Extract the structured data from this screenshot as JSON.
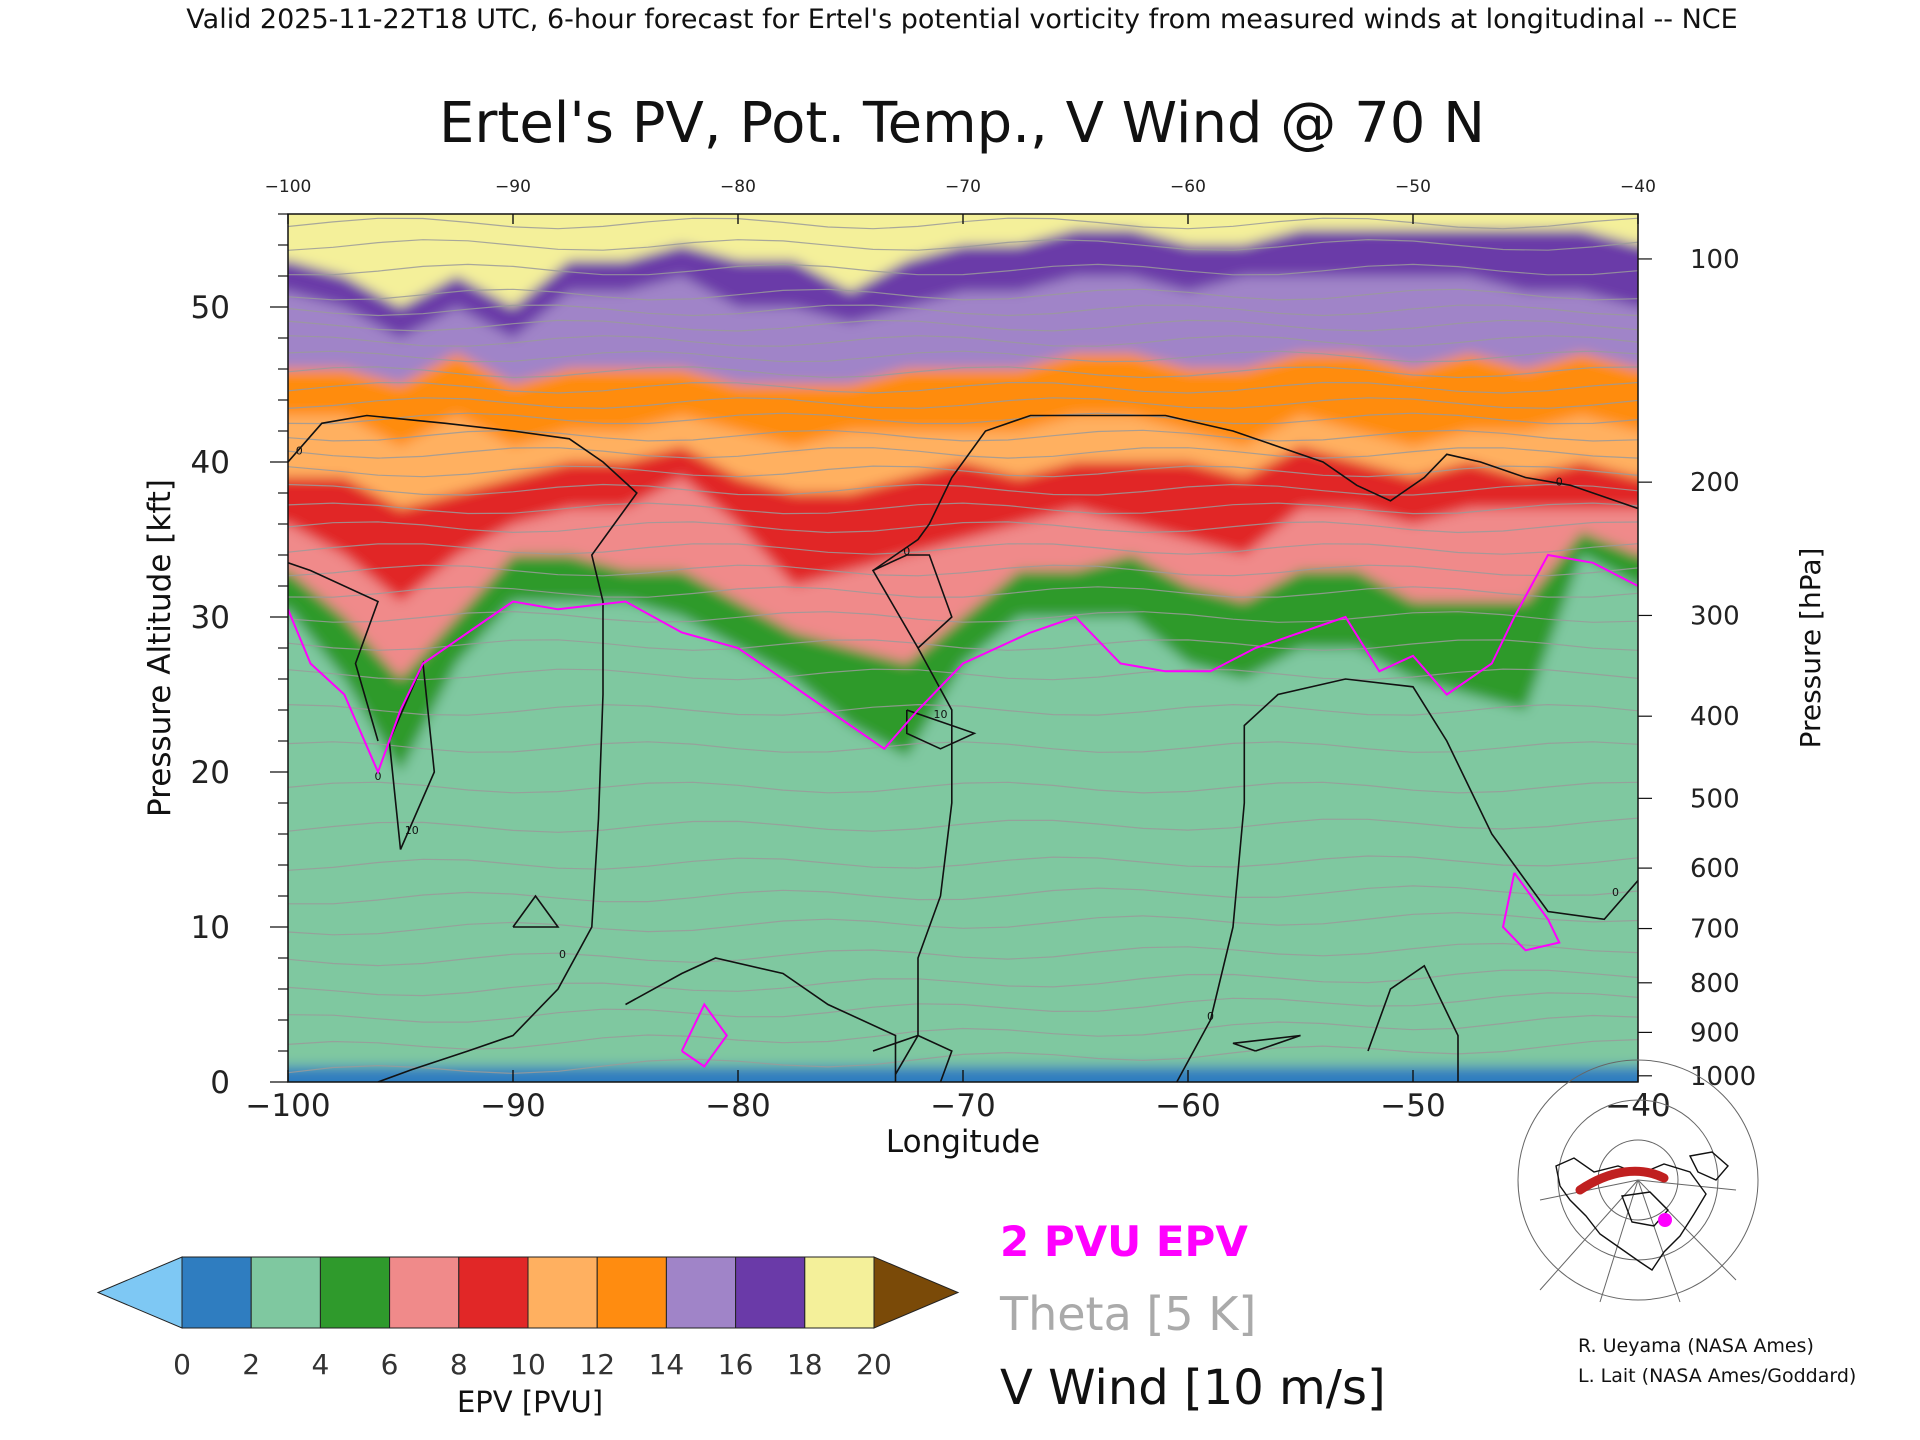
{
  "header": "Valid 2025-11-22T18 UTC, 6-hour forecast for Ertel's potential vorticity from measured winds at longitudinal -- NCE",
  "chart_data": {
    "type": "heatmap",
    "title": "Ertel's PV, Pot. Temp., V Wind @ 70 N",
    "xlabel": "Longitude",
    "ylabel": "Pressure Altitude [kft]",
    "ylabel_right": "Pressure [hPa]",
    "xlim": [
      -100,
      -40
    ],
    "ylim": [
      0,
      56
    ],
    "x_ticks": [
      -100,
      -90,
      -80,
      -70,
      -60,
      -50,
      -40
    ],
    "y_ticks": [
      0,
      10,
      20,
      30,
      40,
      50
    ],
    "pressure_ticks": [
      {
        "hPa": 100,
        "kft": 53.1
      },
      {
        "hPa": 200,
        "kft": 38.7
      },
      {
        "hPa": 300,
        "kft": 30.1
      },
      {
        "hPa": 400,
        "kft": 23.6
      },
      {
        "hPa": 500,
        "kft": 18.3
      },
      {
        "hPa": 600,
        "kft": 13.8
      },
      {
        "hPa": 700,
        "kft": 9.9
      },
      {
        "hPa": 800,
        "kft": 6.4
      },
      {
        "hPa": 900,
        "kft": 3.2
      },
      {
        "hPa": 1000,
        "kft": 0.4
      }
    ],
    "epv_layers": [
      {
        "value": 0,
        "top": [
          1,
          1,
          1,
          1,
          1,
          1,
          1,
          1,
          1,
          1,
          1,
          1,
          1,
          1,
          1,
          1,
          1,
          1,
          1,
          1,
          1,
          1,
          1,
          1,
          1
        ]
      },
      {
        "value": 2,
        "top": [
          30.5,
          26,
          20,
          27,
          31,
          31,
          31,
          30,
          28,
          26,
          23,
          21,
          27,
          30,
          30,
          30,
          27,
          26,
          28,
          28,
          26,
          25,
          24,
          34,
          32
        ]
      },
      {
        "value": 4,
        "top": [
          33,
          30,
          26,
          30,
          34,
          34,
          33,
          33,
          31,
          29,
          28,
          27,
          30,
          33,
          33,
          34,
          32,
          31,
          33,
          33,
          31,
          31,
          31,
          35.5,
          34
        ]
      },
      {
        "value": 6,
        "top": [
          36,
          34,
          31,
          34,
          36,
          37,
          37,
          39,
          36,
          32,
          33,
          34,
          35,
          36,
          37,
          36,
          35,
          34,
          37,
          37,
          36,
          37,
          37,
          37,
          37
        ]
      },
      {
        "value": 8,
        "top": [
          39,
          39,
          37,
          38,
          39,
          40,
          40,
          41,
          39,
          38,
          38,
          39,
          40,
          39,
          40,
          40,
          40,
          39,
          41,
          40,
          39,
          40,
          39,
          40,
          39
        ]
      },
      {
        "value": 10,
        "top": [
          43,
          43,
          41,
          43,
          41,
          42,
          42,
          43,
          42,
          41,
          42,
          42,
          42,
          42,
          43,
          43,
          42,
          41,
          43,
          42,
          41,
          42,
          42,
          43,
          42
        ]
      },
      {
        "value": 12,
        "top": [
          46,
          46,
          45,
          47,
          45,
          46,
          46,
          46,
          45,
          45,
          45,
          46,
          46,
          46,
          47,
          47,
          46,
          46,
          47,
          47,
          46,
          47,
          46,
          47,
          46
        ]
      },
      {
        "value": 14,
        "top": [
          51,
          50,
          48,
          50,
          48,
          51,
          51,
          52,
          50,
          50,
          49,
          50,
          51,
          51,
          52,
          52,
          51,
          52,
          52,
          52,
          52,
          52,
          51,
          51,
          50
        ]
      },
      {
        "value": 16,
        "top": [
          53,
          52,
          50,
          52,
          50,
          53,
          53,
          54,
          53,
          53,
          51,
          53,
          54,
          54,
          55,
          55,
          54,
          54,
          55,
          55,
          55,
          55,
          55,
          55,
          54
        ]
      },
      {
        "value": 18,
        "top": [
          55,
          54,
          51,
          54,
          51,
          55,
          55,
          56,
          55,
          55,
          52,
          55,
          56,
          56,
          56,
          56,
          56,
          56,
          56,
          56,
          56,
          56,
          56,
          56,
          56
        ]
      },
      {
        "value": 20,
        "top": [
          56,
          56,
          56,
          56,
          56,
          56,
          56,
          56,
          56,
          56,
          56,
          56,
          56,
          56,
          56,
          56,
          56,
          56,
          56,
          56,
          56,
          56,
          56,
          56,
          56
        ]
      }
    ],
    "colorbar": {
      "label": "EPV [PVU]",
      "ticks": [
        0,
        2,
        4,
        6,
        8,
        10,
        12,
        14,
        16,
        18,
        20
      ],
      "colors": [
        "#2f7dc0",
        "#7fc8a0",
        "#2f9a2c",
        "#f08a8a",
        "#e12727",
        "#ffb060",
        "#ff8c10",
        "#a084c8",
        "#6a3aa8",
        "#f4f09a"
      ],
      "under_color": "#7ec8f4",
      "over_color": "#7a4a08"
    },
    "pv2_contour": [
      [
        -100,
        30.5
      ],
      [
        -99,
        27
      ],
      [
        -97.5,
        25
      ],
      [
        -96,
        20
      ],
      [
        -95,
        24
      ],
      [
        -94,
        27
      ],
      [
        -92,
        29
      ],
      [
        -90,
        31
      ],
      [
        -88,
        30.5
      ],
      [
        -85,
        31
      ],
      [
        -82.5,
        29
      ],
      [
        -80,
        28
      ],
      [
        -78,
        26
      ],
      [
        -76,
        24
      ],
      [
        -73.5,
        21.5
      ],
      [
        -72,
        24
      ],
      [
        -70,
        27
      ],
      [
        -67,
        29
      ],
      [
        -65,
        30
      ],
      [
        -63,
        27
      ],
      [
        -61,
        26.5
      ],
      [
        -59,
        26.5
      ],
      [
        -57,
        28
      ],
      [
        -55,
        29
      ],
      [
        -53,
        30
      ],
      [
        -51.5,
        26.5
      ],
      [
        -50,
        27.5
      ],
      [
        -48.5,
        25
      ],
      [
        -46.5,
        27
      ],
      [
        -45.5,
        30
      ],
      [
        -44,
        34
      ],
      [
        -42,
        33.5
      ],
      [
        -40,
        32
      ]
    ],
    "pv2_islands": [
      [
        [
          -82.5,
          2
        ],
        [
          -81.5,
          5
        ],
        [
          -80.5,
          3
        ],
        [
          -81.5,
          1
        ],
        [
          -82.5,
          2
        ]
      ],
      [
        [
          -45.5,
          13.5
        ],
        [
          -44,
          10.5
        ],
        [
          -43.5,
          9
        ],
        [
          -45,
          8.5
        ],
        [
          -46,
          10
        ],
        [
          -45.5,
          13.5
        ]
      ]
    ],
    "theta": {
      "label": "Theta [5 K]",
      "levels": [
        {
          "value": 250,
          "y0": 0.6,
          "slope": 0.3
        },
        {
          "value": 255,
          "y0": 2.2,
          "slope": 0.3
        },
        {
          "value": 260,
          "y0": 4.0,
          "slope": 0.25
        },
        {
          "value": 265,
          "y0": 5.8,
          "slope": 0.2
        },
        {
          "value": 270,
          "y0": 7.8,
          "slope": 0.15
        },
        {
          "value": 275,
          "y0": 9.8,
          "slope": 0.15
        },
        {
          "value": 280,
          "y0": 11.8,
          "slope": 0.1
        },
        {
          "value": 285,
          "y0": 14.0,
          "slope": 0.05
        },
        {
          "value": 290,
          "y0": 16.4,
          "slope": 0.05
        },
        {
          "value": 295,
          "y0": 19.0,
          "slope": 0.0
        },
        {
          "value": 300,
          "y0": 21.6,
          "slope": 0.0
        },
        {
          "value": 305,
          "y0": 24.0,
          "slope": 0.0
        },
        {
          "value": 310,
          "y0": 26.3,
          "slope": 0.0
        },
        {
          "value": 315,
          "y0": 28.2,
          "slope": 0.0
        },
        {
          "value": 320,
          "y0": 30.0,
          "slope": 0.0
        },
        {
          "value": 325,
          "y0": 31.6,
          "slope": 0.0
        },
        {
          "value": 330,
          "y0": 33.0,
          "slope": 0.0
        },
        {
          "value": 335,
          "y0": 34.4,
          "slope": 0.0
        },
        {
          "value": 340,
          "y0": 35.8,
          "slope": 0.0
        },
        {
          "value": 345,
          "y0": 37.0,
          "slope": 0.0
        },
        {
          "value": 350,
          "y0": 38.2,
          "slope": 0.0
        },
        {
          "value": 355,
          "y0": 39.4,
          "slope": 0.0
        },
        {
          "value": 360,
          "y0": 40.6,
          "slope": 0.0
        },
        {
          "value": 365,
          "y0": 41.7,
          "slope": 0.0
        },
        {
          "value": 370,
          "y0": 42.8,
          "slope": 0.0
        },
        {
          "value": 375,
          "y0": 43.8,
          "slope": 0.0
        },
        {
          "value": 380,
          "y0": 44.8,
          "slope": 0.0
        },
        {
          "value": 385,
          "y0": 45.8,
          "slope": 0.0
        },
        {
          "value": 390,
          "y0": 46.8,
          "slope": 0.0
        },
        {
          "value": 395,
          "y0": 47.8,
          "slope": 0.0
        },
        {
          "value": 400,
          "y0": 48.8,
          "slope": 0.0
        },
        {
          "value": 405,
          "y0": 49.8,
          "slope": 0.0
        },
        {
          "value": 410,
          "y0": 50.8,
          "slope": 0.0
        },
        {
          "value": 420,
          "y0": 52.4,
          "slope": 0.0
        },
        {
          "value": 430,
          "y0": 54.0,
          "slope": 0.0
        },
        {
          "value": 440,
          "y0": 55.4,
          "slope": 0.0
        }
      ]
    },
    "vwind": {
      "label": "V Wind [10 m/s]",
      "zero_contours": [
        [
          [
            -100,
            40
          ],
          [
            -98.5,
            42.5
          ],
          [
            -96.5,
            43
          ],
          [
            -93,
            42.5
          ],
          [
            -90,
            42
          ],
          [
            -87.5,
            41.5
          ],
          [
            -86,
            40
          ],
          [
            -84.5,
            38
          ],
          [
            -85.5,
            36
          ],
          [
            -86.5,
            34
          ],
          [
            -86,
            31
          ],
          [
            -86,
            25
          ],
          [
            -86.2,
            17
          ],
          [
            -86.5,
            10
          ],
          [
            -88,
            6
          ],
          [
            -90,
            3
          ],
          [
            -92,
            2
          ],
          [
            -94.5,
            0.8
          ],
          [
            -96,
            0
          ]
        ],
        [
          [
            -73,
            0
          ],
          [
            -73,
            3
          ],
          [
            -76,
            5
          ],
          [
            -78,
            7
          ],
          [
            -81,
            8
          ],
          [
            -82.5,
            7
          ],
          [
            -85,
            5
          ]
        ],
        [
          [
            -73,
            0.5
          ],
          [
            -72,
            3
          ],
          [
            -72,
            8
          ],
          [
            -71,
            12
          ],
          [
            -70.5,
            18
          ],
          [
            -70.5,
            24
          ],
          [
            -72,
            28
          ],
          [
            -74,
            33
          ],
          [
            -72.5,
            34
          ],
          [
            -71.5,
            34
          ],
          [
            -70.5,
            30
          ],
          [
            -72,
            28
          ]
        ],
        [
          [
            -74,
            33
          ],
          [
            -73,
            34
          ],
          [
            -72,
            35
          ],
          [
            -71.5,
            36
          ],
          [
            -70.5,
            39
          ],
          [
            -69,
            42
          ],
          [
            -67,
            43
          ],
          [
            -63,
            43
          ],
          [
            -61,
            43
          ],
          [
            -58,
            42
          ],
          [
            -56,
            41
          ],
          [
            -54,
            40
          ],
          [
            -52.5,
            38.5
          ],
          [
            -51,
            37.5
          ],
          [
            -49.5,
            39
          ],
          [
            -48.5,
            40.5
          ],
          [
            -47,
            40
          ],
          [
            -45,
            39
          ],
          [
            -43,
            38.5
          ],
          [
            -41,
            37.5
          ],
          [
            -40,
            37
          ]
        ],
        [
          [
            -60.5,
            0
          ],
          [
            -59,
            4
          ],
          [
            -58,
            10
          ],
          [
            -57.5,
            18
          ],
          [
            -57.5,
            23
          ],
          [
            -56,
            25
          ],
          [
            -53,
            26
          ],
          [
            -50,
            25.5
          ],
          [
            -48.5,
            22
          ],
          [
            -46.5,
            16
          ],
          [
            -44,
            11
          ],
          [
            -41.5,
            10.5
          ],
          [
            -40,
            13
          ]
        ],
        [
          [
            -96,
            22
          ],
          [
            -97,
            27
          ],
          [
            -96,
            31
          ],
          [
            -99,
            33
          ],
          [
            -100,
            33.5
          ]
        ],
        [
          [
            -95,
            15
          ],
          [
            -93.5,
            20
          ],
          [
            -94,
            27
          ],
          [
            -95.5,
            22
          ],
          [
            -95,
            15
          ]
        ],
        [
          [
            -90,
            10
          ],
          [
            -89,
            12
          ],
          [
            -88,
            10
          ],
          [
            -90,
            10
          ]
        ],
        [
          [
            -57,
            2
          ],
          [
            -55,
            3
          ],
          [
            -58,
            2.5
          ],
          [
            -57,
            2
          ]
        ],
        [
          [
            -52,
            2
          ],
          [
            -51,
            6
          ],
          [
            -49.5,
            7.5
          ],
          [
            -48,
            3
          ],
          [
            -48,
            0
          ]
        ],
        [
          [
            -74,
            2
          ],
          [
            -72,
            3
          ],
          [
            -70.5,
            2
          ],
          [
            -71,
            0
          ]
        ]
      ],
      "ten_contour": [
        [
          -72.5,
          24
        ],
        [
          -70.5,
          23
        ],
        [
          -69.5,
          22.5
        ],
        [
          -71,
          21.5
        ],
        [
          -72.5,
          22.5
        ],
        [
          -72.5,
          24
        ]
      ],
      "contour_labels": [
        {
          "x": -99.5,
          "y": 40.5,
          "text": "0"
        },
        {
          "x": -96,
          "y": 19.5,
          "text": "0"
        },
        {
          "x": -72.5,
          "y": 34,
          "text": "0"
        },
        {
          "x": -43.5,
          "y": 38.5,
          "text": "0"
        },
        {
          "x": -87.8,
          "y": 8,
          "text": "0"
        },
        {
          "x": -59,
          "y": 4,
          "text": "0"
        },
        {
          "x": -41,
          "y": 12,
          "text": "0"
        },
        {
          "x": -71,
          "y": 23.5,
          "text": "10"
        },
        {
          "x": -94.5,
          "y": 16,
          "text": "10"
        }
      ]
    },
    "legend": [
      {
        "text": "2 PVU EPV",
        "color": "#ff00ff"
      },
      {
        "text": "Theta [5 K]",
        "color": "#aaaaaa"
      },
      {
        "text": "V Wind [10 m/s]",
        "color": "#111111"
      }
    ]
  },
  "map_inset": {
    "track_lon": [
      -100,
      -40
    ],
    "track_lat": 70,
    "track_color": "#c02020",
    "marker_color": "#ff00ff"
  },
  "credits": [
    "R. Ueyama (NASA Ames)",
    "L. Lait (NASA Ames/Goddard)"
  ]
}
